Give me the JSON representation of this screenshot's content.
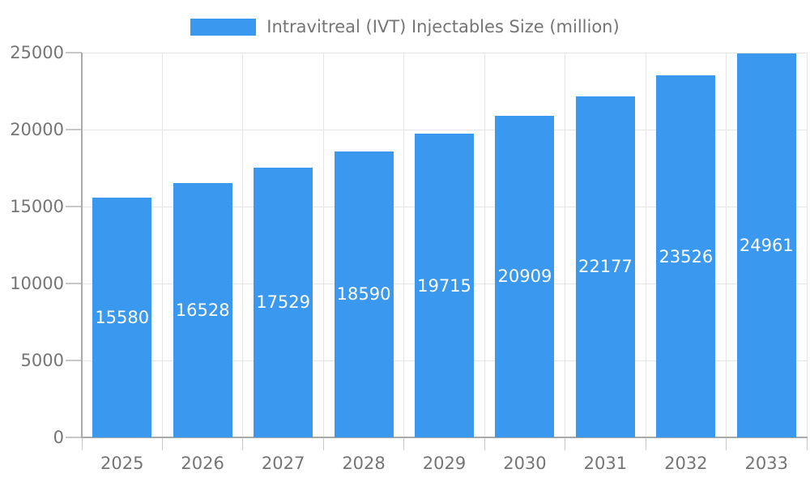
{
  "chart_data": {
    "type": "bar",
    "title": "Intravitreal (IVT) Injectables Size (million)",
    "categories": [
      "2025",
      "2026",
      "2027",
      "2028",
      "2029",
      "2030",
      "2031",
      "2032",
      "2033"
    ],
    "series": [
      {
        "name": "Intravitreal (IVT) Injectables Size (million)",
        "values": [
          15580,
          16528,
          17529,
          18590,
          19715,
          20909,
          22177,
          23526,
          24961
        ]
      }
    ],
    "xlabel": "",
    "ylabel": "",
    "ylim": [
      0,
      25000
    ],
    "yticks": [
      0,
      5000,
      10000,
      15000,
      20000,
      25000
    ],
    "grid": true,
    "legend_position": "top",
    "value_label_position": "inside-middle",
    "colors": {
      "bar": "#3A99EE",
      "value_label": "#FFFFFF",
      "axis_text": "#757575",
      "grid_line": "#E5E5E5",
      "axis_line": "#AAAAAA",
      "tick_line": "#C8C8C8",
      "background": "#FFFFFF"
    }
  }
}
